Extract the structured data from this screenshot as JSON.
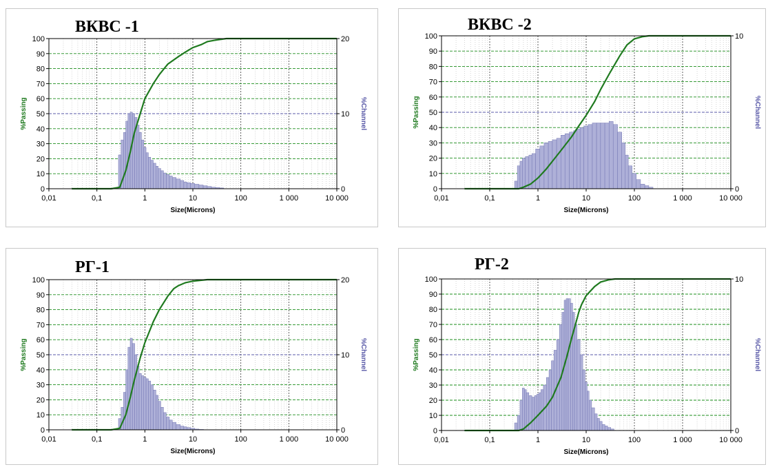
{
  "colors": {
    "passing": "#1f7a1f",
    "channel": "#5a5aa8",
    "bar_fill": "#aeb0d8",
    "bar_stroke": "#7376b3",
    "grid": "#1a8c1a"
  },
  "axis_labels": {
    "x": "Size(Microns)",
    "y_left": "%Passing",
    "y_right": "%Channel"
  },
  "x_tick_labels": [
    "0,01",
    "0,1",
    "1",
    "10",
    "100",
    "1 000",
    "10 000"
  ],
  "y_left_ticks": [
    0,
    10,
    20,
    30,
    40,
    50,
    60,
    70,
    80,
    90,
    100
  ],
  "chart_data": [
    {
      "title": "ВКВС -1",
      "type": "bar+line",
      "x_scale": "log",
      "xlim": [
        0.01,
        10000
      ],
      "ylim_left": [
        0,
        100
      ],
      "ylim_right": [
        0,
        20
      ],
      "right_ticks": [
        0,
        10,
        20
      ],
      "series": [
        {
          "name": "%Channel",
          "x": [
            0.3,
            0.34,
            0.38,
            0.42,
            0.47,
            0.52,
            0.58,
            0.65,
            0.72,
            0.8,
            0.9,
            1.0,
            1.12,
            1.25,
            1.4,
            1.6,
            1.8,
            2.0,
            2.3,
            2.6,
            3.0,
            3.5,
            4.0,
            5.0,
            6.0,
            7.0,
            8.0,
            10,
            12,
            15,
            18,
            22,
            27,
            33,
            40
          ],
          "values": [
            4.5,
            6.5,
            7.5,
            9.0,
            10.0,
            10.2,
            10.0,
            9.5,
            8.5,
            7.5,
            6.5,
            5.5,
            4.8,
            4.2,
            3.8,
            3.4,
            3.0,
            2.7,
            2.4,
            2.1,
            1.9,
            1.7,
            1.5,
            1.3,
            1.1,
            0.9,
            0.8,
            0.7,
            0.6,
            0.5,
            0.4,
            0.3,
            0.2,
            0.15,
            0.1
          ]
        },
        {
          "name": "%Passing",
          "x": [
            0.03,
            0.2,
            0.3,
            0.4,
            0.5,
            0.6,
            0.8,
            1.0,
            1.5,
            2.0,
            3.0,
            5.0,
            7.0,
            10,
            15,
            20,
            30,
            50,
            100,
            1000,
            10000
          ],
          "values": [
            0,
            0,
            1,
            12,
            25,
            37,
            50,
            60,
            70,
            76,
            83,
            88,
            91,
            94,
            96,
            98,
            99,
            100,
            100,
            100,
            100
          ]
        }
      ]
    },
    {
      "title": "ВКВС -2",
      "type": "bar+line",
      "x_scale": "log",
      "xlim": [
        0.01,
        10000
      ],
      "ylim_left": [
        0,
        100
      ],
      "ylim_right": [
        0,
        10
      ],
      "right_ticks": [
        0,
        10
      ],
      "series": [
        {
          "name": "%Channel",
          "x": [
            0.35,
            0.4,
            0.45,
            0.5,
            0.6,
            0.7,
            0.8,
            1.0,
            1.2,
            1.5,
            1.8,
            2.2,
            2.7,
            3.3,
            4,
            5,
            6,
            7,
            8,
            10,
            12,
            15,
            18,
            22,
            27,
            33,
            40,
            50,
            60,
            70,
            80,
            100,
            120,
            150,
            180,
            220
          ],
          "values": [
            0.5,
            1.5,
            1.8,
            2.0,
            2.1,
            2.2,
            2.3,
            2.6,
            2.8,
            3.0,
            3.1,
            3.2,
            3.3,
            3.5,
            3.6,
            3.7,
            3.8,
            3.9,
            4.0,
            4.1,
            4.2,
            4.3,
            4.3,
            4.3,
            4.3,
            4.4,
            4.2,
            3.7,
            3.0,
            2.2,
            1.5,
            1.0,
            0.6,
            0.3,
            0.2,
            0.1
          ]
        },
        {
          "name": "%Passing",
          "x": [
            0.03,
            0.3,
            0.4,
            0.5,
            0.7,
            1.0,
            1.5,
            2.0,
            3.0,
            5.0,
            7.0,
            10,
            15,
            20,
            30,
            50,
            70,
            100,
            150,
            200,
            500,
            1000,
            10000
          ],
          "values": [
            0,
            0,
            0,
            1,
            3,
            7,
            13,
            18,
            25,
            34,
            41,
            48,
            57,
            65,
            75,
            87,
            94,
            98,
            99.5,
            100,
            100,
            100,
            100
          ]
        }
      ]
    },
    {
      "title": "РГ-1",
      "type": "bar+line",
      "x_scale": "log",
      "xlim": [
        0.01,
        10000
      ],
      "ylim_left": [
        0,
        100
      ],
      "ylim_right": [
        0,
        20
      ],
      "right_ticks": [
        0,
        10,
        20
      ],
      "series": [
        {
          "name": "%Channel",
          "x": [
            0.3,
            0.34,
            0.38,
            0.42,
            0.47,
            0.52,
            0.58,
            0.65,
            0.72,
            0.8,
            0.9,
            1.0,
            1.12,
            1.25,
            1.4,
            1.6,
            1.8,
            2.0,
            2.3,
            2.6,
            3.0,
            3.5,
            4.0,
            5.0,
            6.0,
            7.0,
            8.0,
            10,
            12,
            15
          ],
          "values": [
            1.5,
            3.0,
            5.0,
            8.0,
            11.0,
            12.2,
            11.5,
            10.0,
            8.5,
            7.5,
            7.2,
            7.0,
            6.8,
            6.5,
            6.0,
            5.3,
            4.6,
            3.8,
            3.0,
            2.3,
            1.7,
            1.3,
            1.0,
            0.7,
            0.5,
            0.4,
            0.3,
            0.2,
            0.1,
            0.05
          ]
        },
        {
          "name": "%Passing",
          "x": [
            0.03,
            0.2,
            0.3,
            0.4,
            0.5,
            0.6,
            0.8,
            1.0,
            1.5,
            2.0,
            3.0,
            4.0,
            5.0,
            7.0,
            10,
            20,
            100,
            1000,
            10000
          ],
          "values": [
            0,
            0,
            1,
            10,
            22,
            33,
            48,
            58,
            72,
            80,
            89,
            94,
            96,
            98,
            99,
            100,
            100,
            100,
            100
          ]
        }
      ]
    },
    {
      "title": "РГ-2",
      "type": "bar+line",
      "x_scale": "log",
      "xlim": [
        0.01,
        10000
      ],
      "ylim_left": [
        0,
        100
      ],
      "ylim_right": [
        0,
        10
      ],
      "right_ticks": [
        0,
        10
      ],
      "series": [
        {
          "name": "%Channel",
          "x": [
            0.35,
            0.4,
            0.45,
            0.5,
            0.55,
            0.6,
            0.7,
            0.8,
            0.9,
            1.0,
            1.1,
            1.2,
            1.4,
            1.6,
            1.8,
            2.0,
            2.3,
            2.6,
            3.0,
            3.3,
            3.7,
            4.0,
            4.5,
            5.0,
            5.5,
            6.0,
            7.0,
            8.0,
            9.0,
            10,
            11,
            12,
            14,
            16,
            18,
            20,
            23,
            26,
            30,
            35
          ],
          "values": [
            0.5,
            1.0,
            2.0,
            2.8,
            2.7,
            2.5,
            2.3,
            2.2,
            2.3,
            2.4,
            2.5,
            2.7,
            3.0,
            3.5,
            4.0,
            4.6,
            5.3,
            6.0,
            7.0,
            7.8,
            8.6,
            8.7,
            8.7,
            8.4,
            7.8,
            7.0,
            6.0,
            5.0,
            4.0,
            3.2,
            2.6,
            2.0,
            1.5,
            1.1,
            0.8,
            0.6,
            0.4,
            0.3,
            0.2,
            0.1
          ]
        },
        {
          "name": "%Passing",
          "x": [
            0.03,
            0.3,
            0.4,
            0.5,
            0.7,
            1.0,
            1.5,
            2.0,
            3.0,
            4.0,
            5.0,
            6.0,
            7.0,
            8.0,
            10,
            15,
            20,
            30,
            40,
            50,
            100,
            1000,
            10000
          ],
          "values": [
            0,
            0,
            0,
            1,
            5,
            10,
            16,
            22,
            35,
            49,
            61,
            70,
            78,
            83,
            89,
            95,
            98,
            99.5,
            100,
            100,
            100,
            100,
            100
          ]
        }
      ]
    }
  ]
}
